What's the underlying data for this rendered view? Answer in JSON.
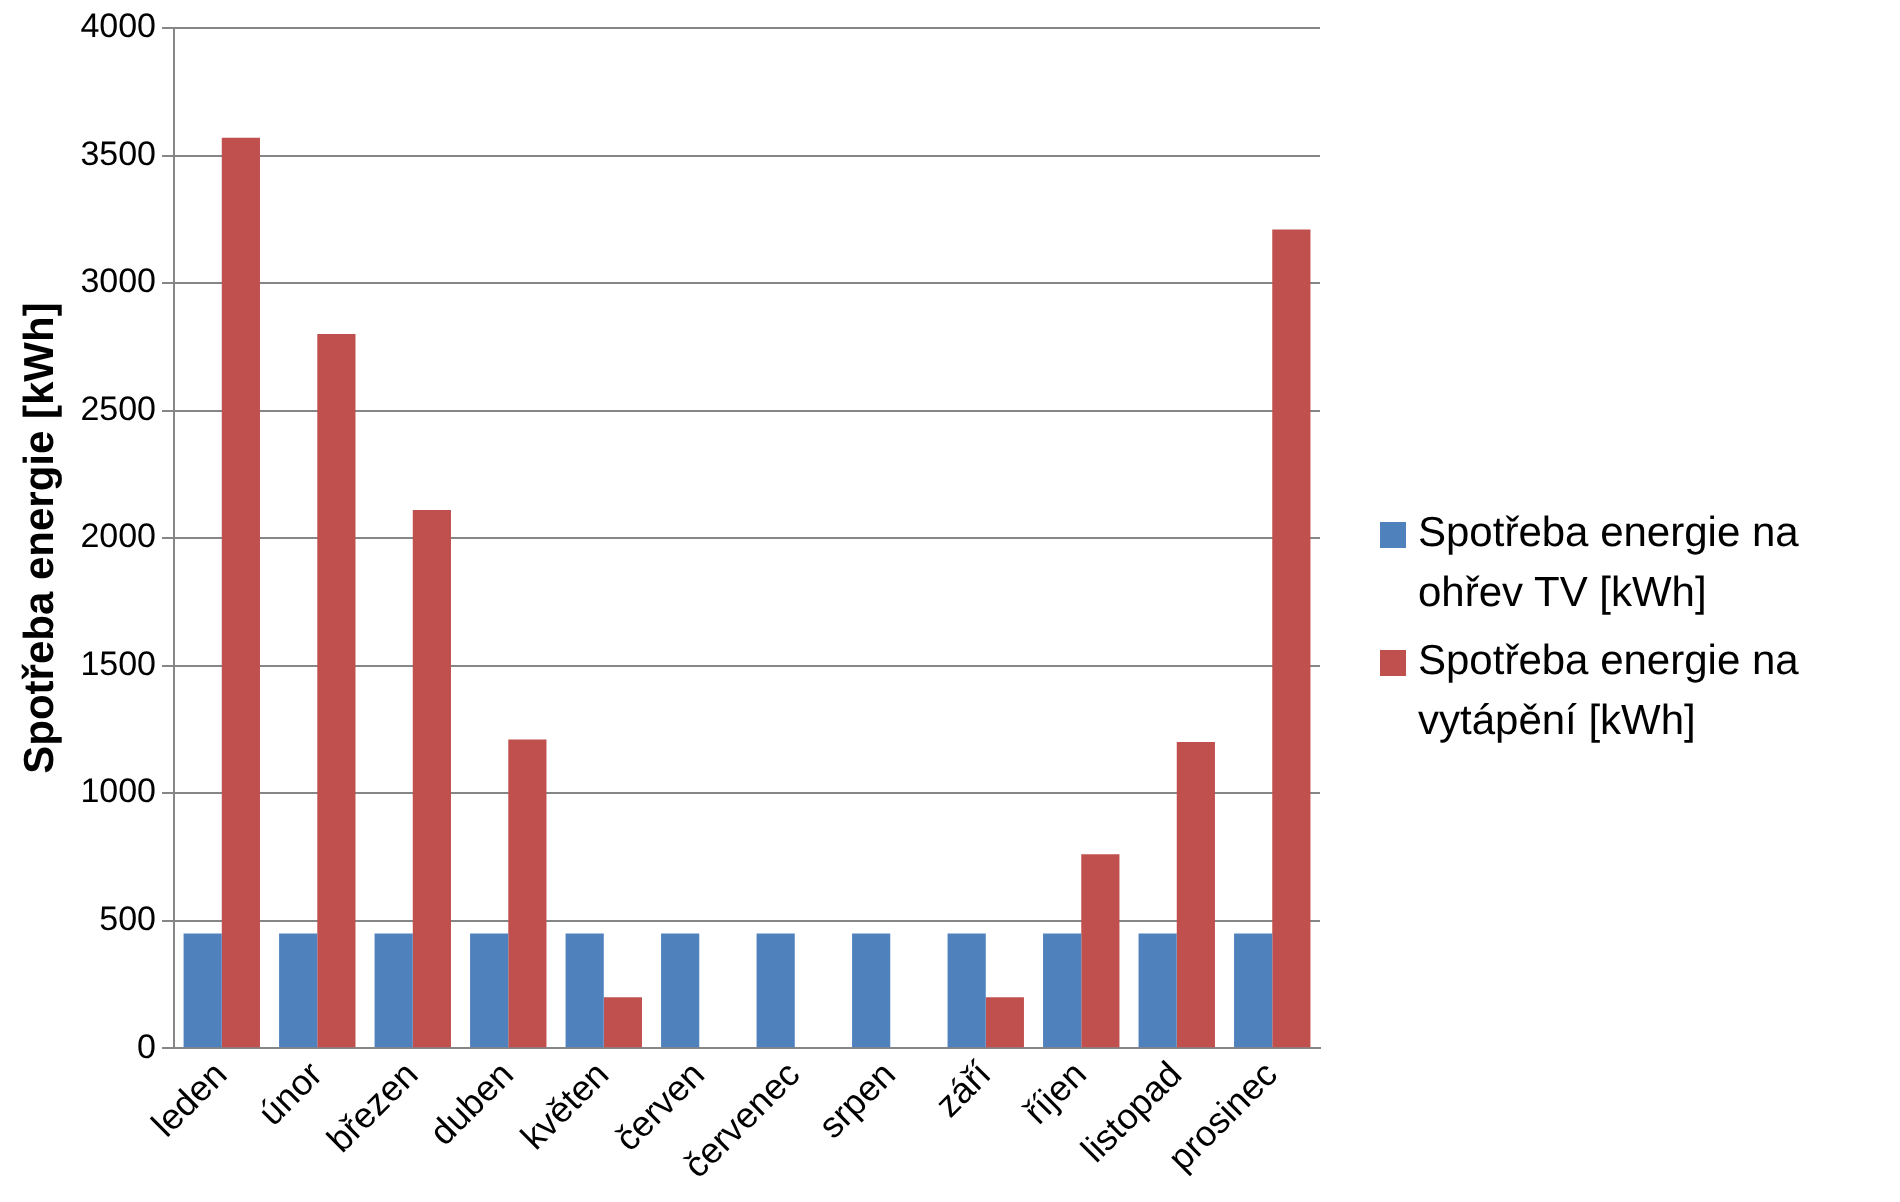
{
  "chart_data": {
    "type": "bar",
    "ylabel": "Spotřeba energie [kWh]",
    "categories": [
      "leden",
      "únor",
      "březen",
      "duben",
      "květen",
      "červen",
      "červenec",
      "srpen",
      "září",
      "říjen",
      "listopad",
      "prosinec"
    ],
    "series": [
      {
        "name": "Spotřeba energie na ohřev TV [kWh]",
        "color": "#4f81bd",
        "values": [
          450,
          450,
          450,
          450,
          450,
          450,
          450,
          450,
          450,
          450,
          450,
          450
        ]
      },
      {
        "name": "Spotřeba energie na vytápění [kWh]",
        "color": "#c0504d",
        "values": [
          3570,
          2800,
          2110,
          1210,
          200,
          0,
          0,
          0,
          200,
          760,
          1200,
          3210
        ]
      }
    ],
    "ylim": [
      0,
      4000
    ],
    "yticks": [
      0,
      500,
      1000,
      1500,
      2000,
      2500,
      3000,
      3500,
      4000
    ],
    "grid": "y",
    "legend": "right"
  }
}
